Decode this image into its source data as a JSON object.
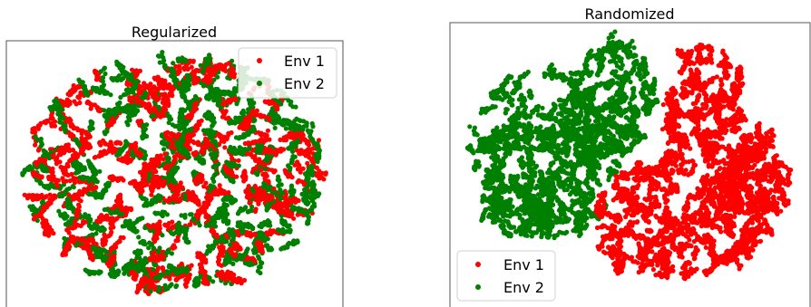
{
  "colors": {
    "env1": "#ff0000",
    "env2": "#008000"
  },
  "chart_data": [
    {
      "type": "scatter",
      "title": "Regularized",
      "xlabel": "",
      "ylabel": "",
      "grid": false,
      "legend_position": "top-right",
      "series": [
        {
          "name": "Env 1",
          "color": "#ff0000"
        },
        {
          "name": "Env 2",
          "color": "#008000"
        }
      ]
    },
    {
      "type": "scatter",
      "title": "Randomized",
      "xlabel": "",
      "ylabel": "",
      "grid": false,
      "legend_position": "bottom-left",
      "series": [
        {
          "name": "Env 1",
          "color": "#ff0000"
        },
        {
          "name": "Env 2",
          "color": "#008000"
        }
      ]
    }
  ]
}
